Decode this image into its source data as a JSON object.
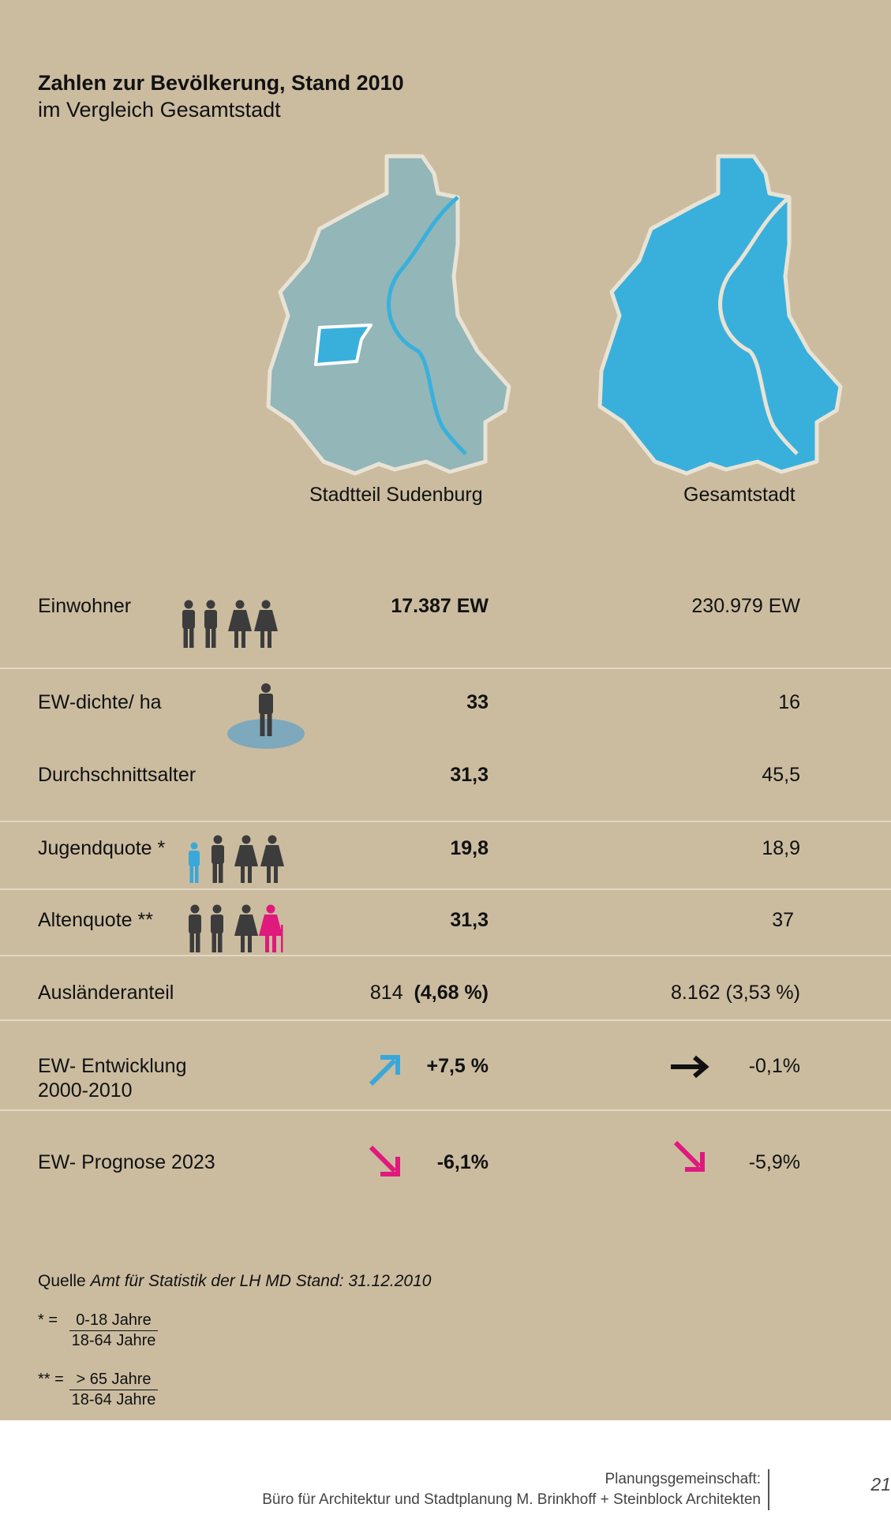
{
  "header": {
    "title": "Zahlen zur Bevölkerung, Stand 2010",
    "subtitle": "im Vergleich Gesamtstadt"
  },
  "maps": {
    "left_label": "Stadtteil Sudenburg",
    "right_label": "Gesamtstadt",
    "colors": {
      "district_fill": "#93b6b8",
      "highlight": "#39b0dc",
      "city_fill": "#39b0dc",
      "outline": "#e9e3d5"
    }
  },
  "rows": [
    {
      "label": "Einwohner",
      "left": "17.387 EW",
      "right": "230.979 EW"
    },
    {
      "label": "EW-dichte/ ha",
      "left": "33",
      "right": "16"
    },
    {
      "label": "Durchschnittsalter",
      "left": "31,3",
      "right": "45,5"
    },
    {
      "label": "Jugendquote *",
      "left": "19,8",
      "right": "18,9"
    },
    {
      "label": "Altenquote **",
      "left": "31,3",
      "right": "37"
    },
    {
      "label": "Ausländeranteil",
      "left_count": "814",
      "left": "(4,68 %)",
      "right": "8.162  (3,53 %)"
    },
    {
      "label_line1": "EW- Entwicklung",
      "label_line2": "2000-2010",
      "left": "+7,5 %",
      "right": "-0,1%"
    },
    {
      "label": "EW- Prognose 2023",
      "left": "-6,1%",
      "right": "-5,9%"
    }
  ],
  "icons": {
    "person_color": "#3c3c3c",
    "child_color": "#39a8d8",
    "senior_color": "#e0197d",
    "arrow_up": "#39a8d8",
    "arrow_down": "#e0197d",
    "arrow_flat": "#111111"
  },
  "source": {
    "prefix": "Quelle",
    "text": "Amt für Statistik der LH MD   Stand: 31.12.2010"
  },
  "footnotes": [
    {
      "mark": "* =",
      "num": "0-18 Jahre",
      "den": "18-64 Jahre"
    },
    {
      "mark": "** =",
      "num": "> 65 Jahre",
      "den": "18-64 Jahre"
    }
  ],
  "footer": {
    "line1": "Planungsgemeinschaft:",
    "line2": "Büro für Architektur und Stadtplanung M. Brinkhoff + Steinblock Architekten",
    "page": "21"
  }
}
